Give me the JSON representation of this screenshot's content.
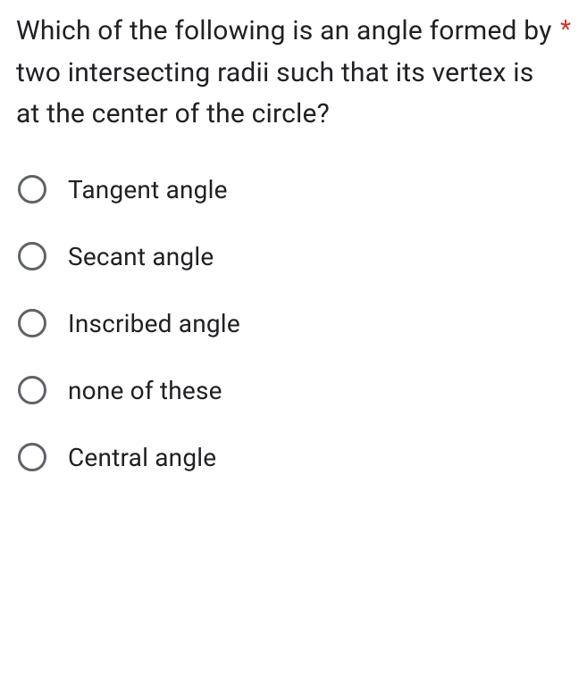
{
  "question": {
    "text": "Which of the following is an angle formed by two intersecting radii such that its vertex is at the center of the circle?",
    "required_marker": "*",
    "required_color": "#d93025",
    "text_color": "#202124",
    "font_size": 30
  },
  "options": [
    {
      "label": "Tangent angle",
      "selected": false
    },
    {
      "label": "Secant angle",
      "selected": false
    },
    {
      "label": "Inscribed angle",
      "selected": false
    },
    {
      "label": "none of these",
      "selected": false
    },
    {
      "label": "Central angle",
      "selected": false
    }
  ],
  "styling": {
    "background_color": "#ffffff",
    "radio_border_color": "#5f6368",
    "radio_size": 32,
    "radio_border_width": 3,
    "option_font_size": 28,
    "option_spacing": 42
  }
}
